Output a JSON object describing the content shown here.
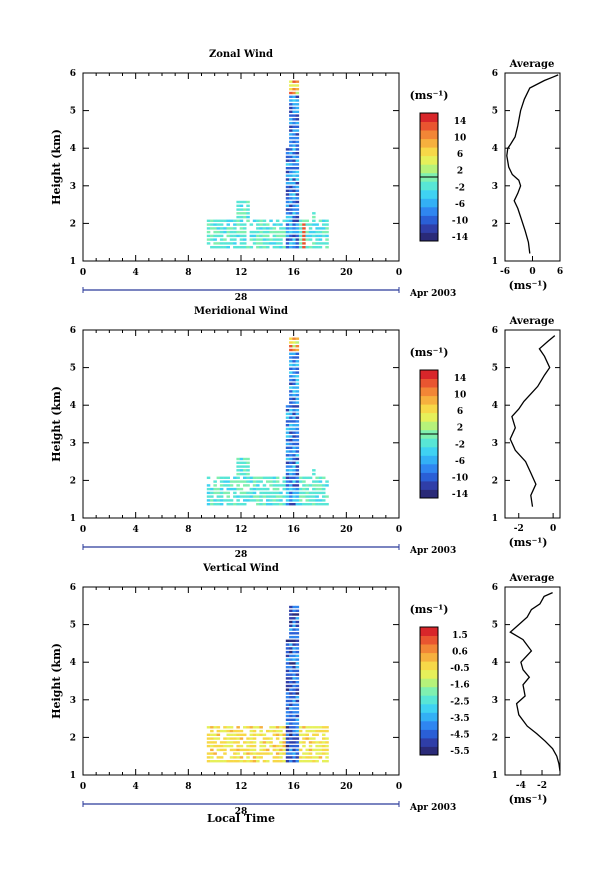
{
  "chart_data": [
    {
      "type": "heatmap",
      "title": "Zonal Wind",
      "ylabel": "Height (km)",
      "xlim": [
        0,
        24
      ],
      "ylim": [
        1,
        6
      ],
      "x_ticks": [
        "0",
        "4",
        "8",
        "12",
        "16",
        "20",
        "0"
      ],
      "y_ticks": [
        "1",
        "2",
        "3",
        "4",
        "5",
        "6"
      ],
      "date_label": "28",
      "date_right": "Apr 2003",
      "colorbar": {
        "unit": "(ms⁻¹)",
        "ticks": [
          "14",
          "10",
          "6",
          "2",
          "-2",
          "-6",
          "-10",
          "-14"
        ],
        "range": [
          -16,
          16
        ]
      },
      "profile": {
        "title": "Average",
        "xlabel": "(ms⁻¹)",
        "x_ticks": [
          "-6",
          "0",
          "6"
        ],
        "xlim": [
          -6,
          6
        ],
        "points": [
          [
            -0.6,
            1.2
          ],
          [
            -0.9,
            1.5
          ],
          [
            -1.6,
            1.8
          ],
          [
            -2.4,
            2.1
          ],
          [
            -3.2,
            2.4
          ],
          [
            -4.0,
            2.6
          ],
          [
            -3.2,
            2.8
          ],
          [
            -2.6,
            3.0
          ],
          [
            -3.0,
            3.15
          ],
          [
            -4.4,
            3.3
          ],
          [
            -5.2,
            3.5
          ],
          [
            -5.6,
            3.8
          ],
          [
            -5.4,
            4.0
          ],
          [
            -4.8,
            4.1
          ],
          [
            -3.8,
            4.3
          ],
          [
            -3.2,
            4.6
          ],
          [
            -2.6,
            5.0
          ],
          [
            -1.8,
            5.3
          ],
          [
            -0.6,
            5.6
          ],
          [
            2.6,
            5.8
          ],
          [
            4.6,
            5.9
          ],
          [
            5.6,
            5.95
          ]
        ]
      }
    },
    {
      "type": "heatmap",
      "title": "Meridional Wind",
      "ylabel": "Height (km)",
      "xlim": [
        0,
        24
      ],
      "ylim": [
        1,
        6
      ],
      "x_ticks": [
        "0",
        "4",
        "8",
        "12",
        "16",
        "20",
        "0"
      ],
      "y_ticks": [
        "1",
        "2",
        "3",
        "4",
        "5",
        "6"
      ],
      "date_label": "28",
      "date_right": "Apr 2003",
      "colorbar": {
        "unit": "(ms⁻¹)",
        "ticks": [
          "14",
          "10",
          "6",
          "2",
          "-2",
          "-6",
          "-10",
          "-14"
        ],
        "range": [
          -16,
          16
        ]
      },
      "profile": {
        "title": "Average",
        "xlabel": "(ms⁻¹)",
        "x_ticks": [
          "-2",
          "0"
        ],
        "xlim": [
          -2.8,
          0.4
        ],
        "points": [
          [
            -1.2,
            1.3
          ],
          [
            -1.3,
            1.6
          ],
          [
            -1.0,
            1.9
          ],
          [
            -1.3,
            2.2
          ],
          [
            -1.6,
            2.5
          ],
          [
            -2.2,
            2.8
          ],
          [
            -2.5,
            3.1
          ],
          [
            -2.2,
            3.4
          ],
          [
            -2.4,
            3.7
          ],
          [
            -2.0,
            3.9
          ],
          [
            -1.7,
            4.1
          ],
          [
            -1.3,
            4.3
          ],
          [
            -0.9,
            4.5
          ],
          [
            -0.5,
            4.8
          ],
          [
            -0.2,
            5.0
          ],
          [
            -0.5,
            5.3
          ],
          [
            -0.8,
            5.5
          ],
          [
            -0.3,
            5.7
          ],
          [
            0.1,
            5.85
          ]
        ]
      }
    },
    {
      "type": "heatmap",
      "title": "Vertical Wind",
      "ylabel": "Height (km)",
      "xlabel": "Local Time",
      "xlim": [
        0,
        24
      ],
      "ylim": [
        1,
        6
      ],
      "x_ticks": [
        "0",
        "4",
        "8",
        "12",
        "16",
        "20",
        "0"
      ],
      "y_ticks": [
        "1",
        "2",
        "3",
        "4",
        "5",
        "6"
      ],
      "date_label": "28",
      "date_right": "Apr 2003",
      "colorbar": {
        "unit": "(ms⁻¹)",
        "ticks": [
          "1.5",
          "0.6",
          "-0.5",
          "-1.6",
          "-2.5",
          "-3.5",
          "-4.5",
          "-5.5"
        ],
        "range": [
          -6,
          2
        ]
      },
      "profile": {
        "title": "Average",
        "xlabel": "(ms⁻¹)",
        "x_ticks": [
          "-4",
          "-2"
        ],
        "xlim": [
          -5.5,
          -0.3
        ],
        "points": [
          [
            -0.3,
            1.1
          ],
          [
            -0.4,
            1.3
          ],
          [
            -0.6,
            1.5
          ],
          [
            -1.0,
            1.7
          ],
          [
            -1.7,
            1.9
          ],
          [
            -2.5,
            2.1
          ],
          [
            -3.4,
            2.3
          ],
          [
            -4.2,
            2.6
          ],
          [
            -4.4,
            2.9
          ],
          [
            -3.6,
            3.1
          ],
          [
            -3.8,
            3.4
          ],
          [
            -3.2,
            3.6
          ],
          [
            -3.8,
            3.8
          ],
          [
            -4.0,
            4.0
          ],
          [
            -3.0,
            4.3
          ],
          [
            -3.8,
            4.6
          ],
          [
            -5.0,
            4.8
          ],
          [
            -4.2,
            5.0
          ],
          [
            -3.4,
            5.2
          ],
          [
            -3.0,
            5.4
          ],
          [
            -2.2,
            5.55
          ],
          [
            -1.8,
            5.75
          ],
          [
            -1.0,
            5.85
          ]
        ]
      }
    }
  ]
}
